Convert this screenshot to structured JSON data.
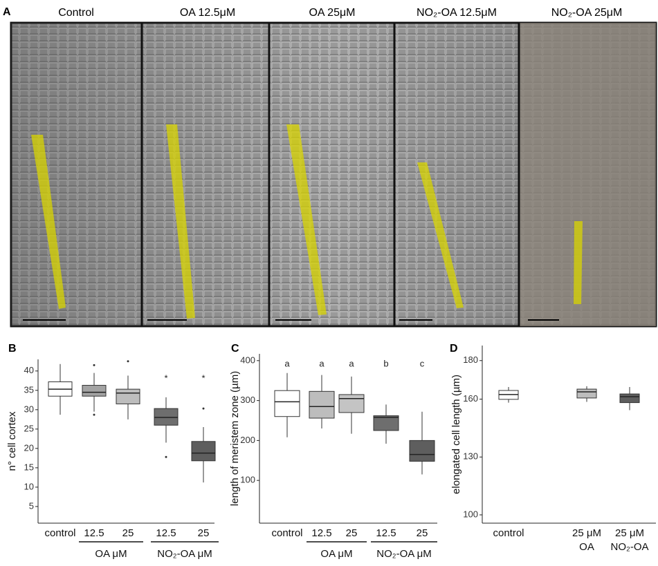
{
  "panel_a": {
    "label": "A",
    "titles": [
      "Control",
      "OA 12.5μM",
      "OA 25μM",
      "NO₂-OA 12.5μM",
      "NO₂-OA 25μM"
    ]
  },
  "chart_data": [
    {
      "type": "box",
      "panel": "B",
      "y_label": "n° cell cortex",
      "categories": [
        [
          "control"
        ],
        [
          "12.5"
        ],
        [
          "25"
        ],
        [
          "12.5"
        ],
        [
          "25"
        ]
      ],
      "group_labels": [
        "OA μM",
        "NO₂-OA μM"
      ],
      "colors": [
        "#ffffff",
        "#a3a3a3",
        "#bdbdbd",
        "#6e6e6e",
        "#5e5e5e"
      ],
      "boxes": [
        {
          "min": 28.7,
          "q1": 33.5,
          "median": 35.3,
          "q3": 37.2,
          "max": 41.8,
          "outliers": []
        },
        {
          "min": 29.5,
          "q1": 33.5,
          "median": 34.5,
          "q3": 36.3,
          "max": 39.5,
          "outliers": [
            41.5,
            28.7
          ]
        },
        {
          "min": 27.5,
          "q1": 31.5,
          "median": 34.3,
          "q3": 35.3,
          "max": 38.8,
          "outliers": [
            42.5
          ]
        },
        {
          "min": 21.5,
          "q1": 26,
          "median": 28,
          "q3": 30.3,
          "max": 33.2,
          "outliers": [
            17.8
          ]
        },
        {
          "min": 11.2,
          "q1": 16.8,
          "median": 18.8,
          "q3": 21.8,
          "max": 25.5,
          "outliers": [
            30.3
          ]
        }
      ],
      "annotations": [
        null,
        null,
        null,
        "*",
        "*"
      ],
      "ylim": [
        0.7,
        43
      ],
      "yticks": [
        5,
        10,
        15,
        20,
        25,
        30,
        35,
        40
      ]
    },
    {
      "type": "box",
      "panel": "C",
      "y_label": "length of meristem zone (µm)",
      "categories": [
        [
          "control"
        ],
        [
          "12.5"
        ],
        [
          "25"
        ],
        [
          "12.5"
        ],
        [
          "25"
        ]
      ],
      "group_labels": [
        "OA μM",
        "NO₂-OA μM"
      ],
      "colors": [
        "#ffffff",
        "#bdbdbd",
        "#c4c4c4",
        "#6e6e6e",
        "#5e5e5e"
      ],
      "boxes": [
        {
          "min": 208,
          "q1": 260,
          "median": 297,
          "q3": 325,
          "max": 369,
          "outliers": []
        },
        {
          "min": 230,
          "q1": 256,
          "median": 285,
          "q3": 323,
          "max": 364,
          "outliers": []
        },
        {
          "min": 217,
          "q1": 270,
          "median": 305,
          "q3": 315,
          "max": 360,
          "outliers": []
        },
        {
          "min": 192,
          "q1": 225,
          "median": 258,
          "q3": 262,
          "max": 290,
          "outliers": []
        },
        {
          "min": 115,
          "q1": 148,
          "median": 165,
          "q3": 200,
          "max": 272,
          "outliers": []
        }
      ],
      "annotations": [
        "a",
        "a",
        "a",
        "b",
        "c"
      ],
      "ylim": [
        -7,
        417
      ],
      "yticks": [
        100,
        200,
        300,
        400
      ]
    },
    {
      "type": "box",
      "panel": "D",
      "y_label": "elongated cell length (µm)",
      "categories": [
        [
          "control"
        ],
        [
          "25 μM",
          "OA"
        ],
        [
          "25 μM",
          "NO₂-OA"
        ]
      ],
      "colors": [
        "#ffffff",
        "#bdbdbd",
        "#5e5e5e"
      ],
      "boxes": [
        {
          "min": 158.2,
          "q1": 159.9,
          "median": 162.4,
          "q3": 164.5,
          "max": 166.3,
          "outliers": []
        },
        {
          "min": 158.6,
          "q1": 160.6,
          "median": 163.8,
          "q3": 165.2,
          "max": 166.7,
          "outliers": []
        },
        {
          "min": 154.3,
          "q1": 158.2,
          "median": 161.3,
          "q3": 162.7,
          "max": 166.3,
          "outliers": []
        }
      ],
      "ylim": [
        95.7,
        187.8
      ],
      "yticks": [
        100,
        130,
        160,
        180
      ]
    }
  ]
}
